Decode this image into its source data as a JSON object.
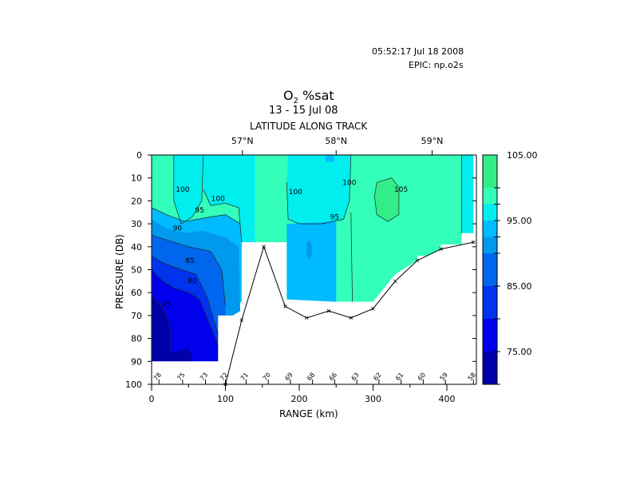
{
  "header": {
    "timestamp": "05:52:17 Jul 18 2008",
    "epic": "EPIC:  np.o2s"
  },
  "chart_data": {
    "type": "heatmap",
    "title_main": "O",
    "title_sub": "2",
    "title_rest": " %sat",
    "subtitle": "13 - 15 Jul 08",
    "top_axis_title": "LATITUDE ALONG TRACK",
    "top_ticks": [
      {
        "label": "57°N",
        "range_km": 123
      },
      {
        "label": "58°N",
        "range_km": 250
      },
      {
        "label": "59°N",
        "range_km": 380
      }
    ],
    "xlabel": "RANGE (km)",
    "ylabel": "PRESSURE (DB)",
    "xlim": [
      0,
      440
    ],
    "ylim": [
      100,
      0
    ],
    "x_ticks": [
      0,
      100,
      200,
      300,
      400
    ],
    "y_ticks": [
      0,
      10,
      20,
      30,
      40,
      50,
      60,
      70,
      80,
      90,
      100
    ],
    "station_labels": [
      {
        "label": "78",
        "range_km": 10
      },
      {
        "label": "75",
        "range_km": 42
      },
      {
        "label": "73",
        "range_km": 73
      },
      {
        "label": "72",
        "range_km": 100
      },
      {
        "label": "71",
        "range_km": 128
      },
      {
        "label": "70",
        "range_km": 158
      },
      {
        "label": "69",
        "range_km": 188
      },
      {
        "label": "68",
        "range_km": 218
      },
      {
        "label": "66",
        "range_km": 248
      },
      {
        "label": "63",
        "range_km": 278
      },
      {
        "label": "62",
        "range_km": 308
      },
      {
        "label": "61",
        "range_km": 338
      },
      {
        "label": "60",
        "range_km": 368
      },
      {
        "label": "59",
        "range_km": 398
      },
      {
        "label": "58",
        "range_km": 436
      }
    ],
    "bottom_depth": [
      {
        "x": 100,
        "y": 100
      },
      {
        "x": 122,
        "y": 72
      },
      {
        "x": 152,
        "y": 40
      },
      {
        "x": 181,
        "y": 66
      },
      {
        "x": 210,
        "y": 71
      },
      {
        "x": 240,
        "y": 68
      },
      {
        "x": 270,
        "y": 71
      },
      {
        "x": 300,
        "y": 67
      },
      {
        "x": 330,
        "y": 55
      },
      {
        "x": 360,
        "y": 46
      },
      {
        "x": 392,
        "y": 41
      },
      {
        "x": 436,
        "y": 38
      }
    ],
    "contour_labels": [
      {
        "text": "100",
        "x": 42,
        "y": 16
      },
      {
        "text": "100",
        "x": 90,
        "y": 20
      },
      {
        "text": "100",
        "x": 195,
        "y": 17
      },
      {
        "text": "100",
        "x": 268,
        "y": 13
      },
      {
        "text": "105",
        "x": 338,
        "y": 16
      },
      {
        "text": "95",
        "x": 65,
        "y": 25
      },
      {
        "text": "95",
        "x": 248,
        "y": 28
      },
      {
        "text": "90",
        "x": 35,
        "y": 33
      },
      {
        "text": "85",
        "x": 52,
        "y": 47
      },
      {
        "text": "80",
        "x": 55,
        "y": 56
      },
      {
        "text": "75",
        "x": 20,
        "y": 66
      }
    ],
    "colorbar": {
      "min": 70,
      "max": 105,
      "levels": [
        {
          "from": 100,
          "to": 105,
          "color": "#33ee88"
        },
        {
          "from": 97.5,
          "to": 100,
          "color": "#33ffbb"
        },
        {
          "from": 95,
          "to": 97.5,
          "color": "#00eeee"
        },
        {
          "from": 92.5,
          "to": 95,
          "color": "#00bbff"
        },
        {
          "from": 90,
          "to": 92.5,
          "color": "#0099ee"
        },
        {
          "from": 85,
          "to": 90,
          "color": "#0066ee"
        },
        {
          "from": 80,
          "to": 85,
          "color": "#0033ee"
        },
        {
          "from": 75,
          "to": 80,
          "color": "#0000ee"
        },
        {
          "from": 70,
          "to": 75,
          "color": "#0000aa"
        }
      ],
      "tick_labels": [
        "105.00",
        "95.00",
        "85.00",
        "75.00"
      ],
      "tick_values": [
        105,
        95,
        85,
        75
      ]
    },
    "colors": {
      "c105": "#33ee88",
      "c100": "#33ffbb",
      "c97": "#00eeee",
      "c95": "#00bbff",
      "c92": "#0099ee",
      "c90": "#0066ee",
      "c85": "#0033ee",
      "c80": "#0000ee",
      "c75": "#0000aa"
    }
  }
}
